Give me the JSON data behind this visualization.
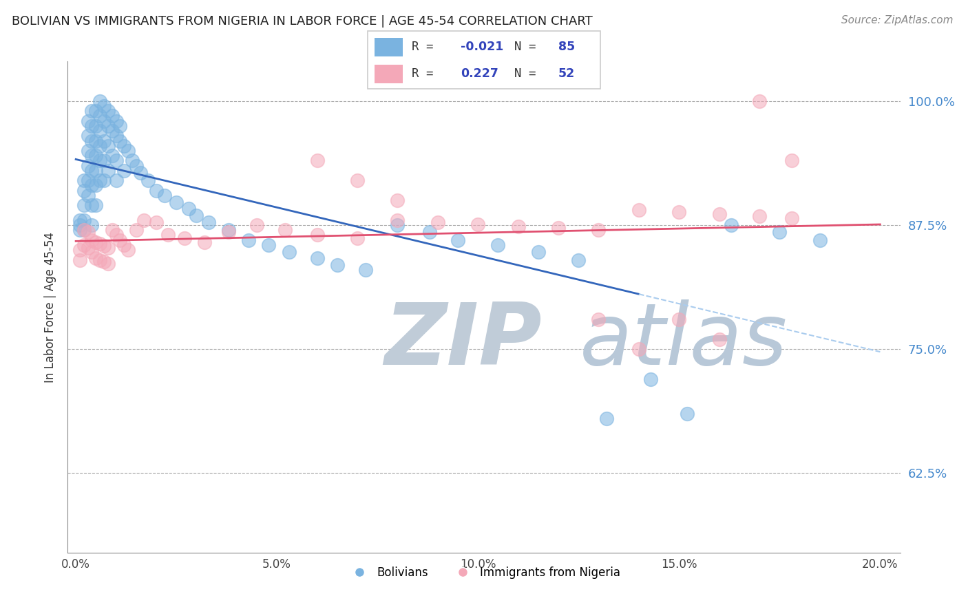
{
  "title": "BOLIVIAN VS IMMIGRANTS FROM NIGERIA IN LABOR FORCE | AGE 45-54 CORRELATION CHART",
  "source": "Source: ZipAtlas.com",
  "ylabel": "In Labor Force | Age 45-54",
  "xlim": [
    -0.002,
    0.205
  ],
  "ylim": [
    0.545,
    1.04
  ],
  "yticks": [
    0.625,
    0.75,
    0.875,
    1.0
  ],
  "ytick_labels": [
    "62.5%",
    "75.0%",
    "87.5%",
    "100.0%"
  ],
  "xticks": [
    0.0,
    0.05,
    0.1,
    0.15,
    0.2
  ],
  "xtick_labels": [
    "0.0%",
    "5.0%",
    "10.0%",
    "15.0%",
    "20.0%"
  ],
  "blue_R": -0.021,
  "blue_N": 85,
  "pink_R": 0.227,
  "pink_N": 52,
  "blue_color": "#7ab3e0",
  "pink_color": "#f4a8b8",
  "blue_line_color": "#3366bb",
  "pink_line_color": "#e05070",
  "legend_label_blue": "Bolivians",
  "legend_label_pink": "Immigrants from Nigeria",
  "watermark_zip": "ZIP",
  "watermark_atlas": "atlas",
  "watermark_color_zip": "#c0ccd8",
  "watermark_color_atlas": "#b8c8d8",
  "background_color": "#ffffff",
  "blue_x": [
    0.001,
    0.001,
    0.001,
    0.002,
    0.002,
    0.002,
    0.002,
    0.002,
    0.003,
    0.003,
    0.003,
    0.003,
    0.003,
    0.003,
    0.004,
    0.004,
    0.004,
    0.004,
    0.004,
    0.004,
    0.004,
    0.004,
    0.005,
    0.005,
    0.005,
    0.005,
    0.005,
    0.005,
    0.005,
    0.006,
    0.006,
    0.006,
    0.006,
    0.006,
    0.007,
    0.007,
    0.007,
    0.007,
    0.008,
    0.008,
    0.008,
    0.009,
    0.009,
    0.01,
    0.01,
    0.01,
    0.011,
    0.012,
    0.012,
    0.013,
    0.014,
    0.015,
    0.016,
    0.018,
    0.02,
    0.022,
    0.025,
    0.028,
    0.03,
    0.033,
    0.038,
    0.043,
    0.048,
    0.053,
    0.06,
    0.065,
    0.072,
    0.08,
    0.088,
    0.095,
    0.105,
    0.115,
    0.125,
    0.132,
    0.143,
    0.152,
    0.163,
    0.175,
    0.185,
    0.006,
    0.007,
    0.008,
    0.009,
    0.01,
    0.011
  ],
  "blue_y": [
    0.875,
    0.88,
    0.87,
    0.92,
    0.91,
    0.895,
    0.88,
    0.87,
    0.98,
    0.965,
    0.95,
    0.935,
    0.92,
    0.905,
    0.99,
    0.975,
    0.96,
    0.945,
    0.93,
    0.915,
    0.895,
    0.875,
    0.99,
    0.975,
    0.96,
    0.945,
    0.93,
    0.915,
    0.895,
    0.985,
    0.97,
    0.955,
    0.94,
    0.92,
    0.98,
    0.96,
    0.94,
    0.92,
    0.975,
    0.955,
    0.93,
    0.97,
    0.945,
    0.965,
    0.94,
    0.92,
    0.96,
    0.955,
    0.93,
    0.95,
    0.94,
    0.935,
    0.928,
    0.92,
    0.91,
    0.905,
    0.898,
    0.892,
    0.885,
    0.878,
    0.87,
    0.86,
    0.855,
    0.848,
    0.842,
    0.835,
    0.83,
    0.875,
    0.868,
    0.86,
    0.855,
    0.848,
    0.84,
    0.68,
    0.72,
    0.685,
    0.875,
    0.868,
    0.86,
    1.0,
    0.995,
    0.99,
    0.985,
    0.98,
    0.975
  ],
  "pink_x": [
    0.001,
    0.001,
    0.002,
    0.002,
    0.003,
    0.003,
    0.004,
    0.004,
    0.005,
    0.005,
    0.006,
    0.006,
    0.007,
    0.007,
    0.008,
    0.008,
    0.009,
    0.01,
    0.011,
    0.012,
    0.013,
    0.015,
    0.017,
    0.02,
    0.023,
    0.027,
    0.032,
    0.038,
    0.045,
    0.052,
    0.06,
    0.07,
    0.08,
    0.09,
    0.1,
    0.11,
    0.12,
    0.13,
    0.14,
    0.15,
    0.16,
    0.17,
    0.178,
    0.06,
    0.07,
    0.08,
    0.13,
    0.14,
    0.15,
    0.16,
    0.17,
    0.178
  ],
  "pink_y": [
    0.85,
    0.84,
    0.87,
    0.855,
    0.868,
    0.852,
    0.86,
    0.848,
    0.858,
    0.842,
    0.856,
    0.84,
    0.854,
    0.838,
    0.852,
    0.836,
    0.87,
    0.865,
    0.86,
    0.855,
    0.85,
    0.87,
    0.88,
    0.878,
    0.865,
    0.862,
    0.858,
    0.868,
    0.875,
    0.87,
    0.865,
    0.862,
    0.88,
    0.878,
    0.876,
    0.874,
    0.872,
    0.87,
    0.89,
    0.888,
    0.886,
    0.884,
    0.882,
    0.94,
    0.92,
    0.9,
    0.78,
    0.75,
    0.78,
    0.76,
    1.0,
    0.94
  ]
}
